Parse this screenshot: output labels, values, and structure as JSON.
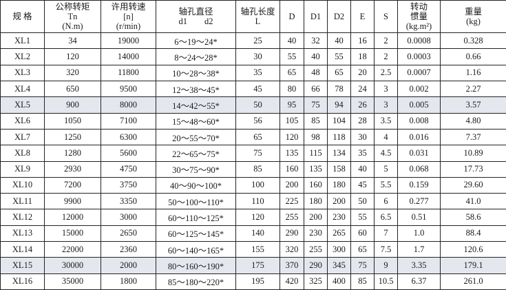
{
  "headers": [
    {
      "lines": [
        "规 格"
      ]
    },
    {
      "lines": [
        "公称转矩",
        "Tn",
        "(N.m)"
      ]
    },
    {
      "lines": [
        "许用转速",
        "[n]",
        "(r/min)"
      ]
    },
    {
      "lines": [
        "轴孔直径",
        "d1　　d2"
      ]
    },
    {
      "lines": [
        "轴孔长度",
        "L"
      ]
    },
    {
      "lines": [
        "D"
      ]
    },
    {
      "lines": [
        "D1"
      ]
    },
    {
      "lines": [
        "D2"
      ]
    },
    {
      "lines": [
        "E"
      ]
    },
    {
      "lines": [
        "S"
      ]
    },
    {
      "lines": [
        "转动",
        "惯量",
        "(kg.m²)"
      ]
    },
    {
      "lines": [
        "重量",
        "(kg)"
      ]
    }
  ],
  "shaded_rows": [
    "XL5",
    "XL15"
  ],
  "shade_color": "#e4e8ee",
  "rows": [
    [
      "XL1",
      "34",
      "19000",
      "6～19～24*",
      "25",
      "40",
      "32",
      "40",
      "16",
      "2",
      "0.0008",
      "0.328"
    ],
    [
      "XL2",
      "120",
      "14000",
      "8～24～28*",
      "30",
      "55",
      "40",
      "55",
      "18",
      "2",
      "0.0003",
      "0.66"
    ],
    [
      "XL3",
      "320",
      "11800",
      "10～28～38*",
      "35",
      "65",
      "48",
      "65",
      "20",
      "2.5",
      "0.0007",
      "1.16"
    ],
    [
      "XL4",
      "650",
      "9500",
      "12～38～45*",
      "45",
      "80",
      "66",
      "78",
      "24",
      "3",
      "0.002",
      "2.27"
    ],
    [
      "XL5",
      "900",
      "8000",
      "14～42～55*",
      "50",
      "95",
      "75",
      "94",
      "26",
      "3",
      "0.005",
      "3.57"
    ],
    [
      "XL6",
      "1050",
      "7100",
      "15～48～60*",
      "56",
      "105",
      "85",
      "104",
      "28",
      "3.5",
      "0.008",
      "4.80"
    ],
    [
      "XL7",
      "1250",
      "6300",
      "20～55～70*",
      "65",
      "120",
      "98",
      "118",
      "30",
      "4",
      "0.016",
      "7.37"
    ],
    [
      "XL8",
      "1280",
      "5600",
      "22～65～75*",
      "75",
      "135",
      "115",
      "134",
      "35",
      "4.5",
      "0.031",
      "10.89"
    ],
    [
      "XL9",
      "2930",
      "4750",
      "30～75～90*",
      "85",
      "160",
      "135",
      "158",
      "40",
      "5",
      "0.068",
      "17.73"
    ],
    [
      "XL10",
      "7200",
      "3750",
      "40～90～100*",
      "100",
      "200",
      "160",
      "180",
      "45",
      "5.5",
      "0.159",
      "29.60"
    ],
    [
      "XL11",
      "9900",
      "3350",
      "50～100～110*",
      "110",
      "225",
      "180",
      "200",
      "50",
      "6",
      "0.277",
      "41.0"
    ],
    [
      "XL12",
      "12000",
      "3000",
      "60～110～125*",
      "120",
      "255",
      "200",
      "230",
      "55",
      "6.5",
      "0.51",
      "58.6"
    ],
    [
      "XL13",
      "15000",
      "2650",
      "60～125～145*",
      "140",
      "290",
      "230",
      "265",
      "60",
      "7",
      "1.0",
      "88.4"
    ],
    [
      "XL14",
      "22000",
      "2360",
      "60～140～165*",
      "155",
      "320",
      "255",
      "300",
      "65",
      "7.5",
      "1.7",
      "120.6"
    ],
    [
      "XL15",
      "30000",
      "2000",
      "80～160～190*",
      "175",
      "370",
      "290",
      "345",
      "75",
      "9",
      "3.35",
      "179.1"
    ],
    [
      "XL16",
      "35000",
      "1800",
      "85～180～220*",
      "195",
      "420",
      "325",
      "400",
      "85",
      "10.5",
      "6.37",
      "261.0"
    ]
  ]
}
